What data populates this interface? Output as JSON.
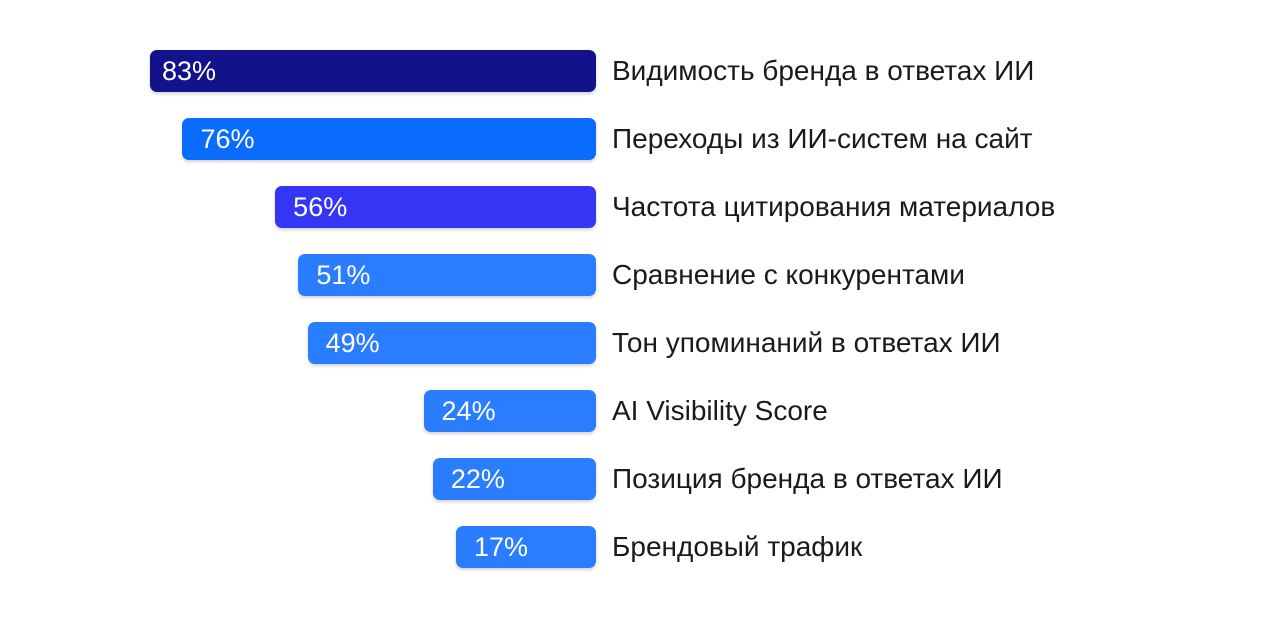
{
  "chart_data": {
    "type": "bar",
    "orientation": "horizontal",
    "categories": [
      "Видимость бренда в ответах ИИ",
      "Переходы из ИИ-систем на сайт",
      "Частота цитирования материалов",
      "Сравнение с конкурентами",
      "Тон упоминаний в ответах ИИ",
      "AI Visibility Score",
      "Позиция бренда в ответах ИИ",
      "Брендовый трафик"
    ],
    "values": [
      83,
      76,
      56,
      51,
      49,
      24,
      22,
      17
    ],
    "value_labels": [
      "83%",
      "76%",
      "56%",
      "51%",
      "49%",
      "24%",
      "22%",
      "17%"
    ],
    "unit": "%",
    "bar_colors": [
      "#12138b",
      "#0a6cff",
      "#3535f5",
      "#2a7dff",
      "#2a7dff",
      "#2a7dff",
      "#2a7dff",
      "#2a7dff"
    ],
    "legend": "none",
    "grid": false,
    "title": "",
    "xlabel": "",
    "ylabel": ""
  }
}
